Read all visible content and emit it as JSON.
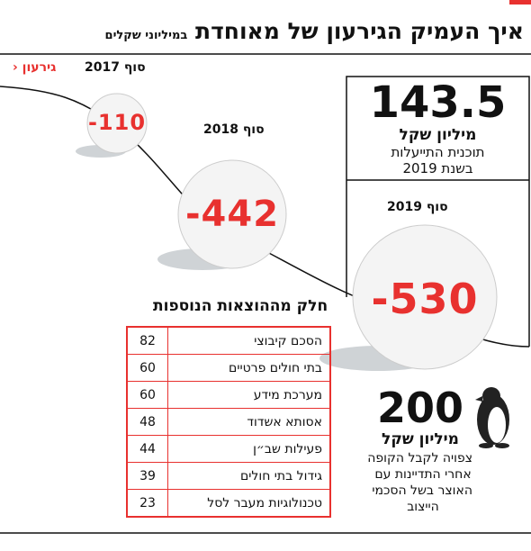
{
  "header": {
    "title": "איך העמיק הגירעון של מאוחדת",
    "subtitle": "במיליוני שקלים"
  },
  "legend": {
    "label": "גירעון"
  },
  "balls": [
    {
      "label": "סוף 2017",
      "value": -110
    },
    {
      "label": "סוף 2018",
      "value": -442
    },
    {
      "label": "סוף 2019",
      "value": -530
    }
  ],
  "plan": {
    "amount": 143.5,
    "unit": "מיליון שקל",
    "lines": [
      "תוכנית התייעלות",
      "בשנת 2019"
    ]
  },
  "table": {
    "title": "חלק מההוצאות הנוספות",
    "rows": [
      [
        "הסכם קיבוצי",
        82
      ],
      [
        "בתי חולים פרטיים",
        60
      ],
      [
        "מערכת מידע",
        60
      ],
      [
        "אסותא אשדוד",
        48
      ],
      [
        "פעילות שב״ן",
        44
      ],
      [
        "גידול בתי חולים",
        39
      ],
      [
        "טכנולוגיות מעבר לסל",
        23
      ]
    ]
  },
  "settlement": {
    "amount": 200,
    "unit": "מיליון שקל",
    "lines": [
      "צפויה לקבל הקופה",
      "אחרי התדיינות עם",
      "האוצר בשל הסכמי",
      "הייצוב"
    ]
  }
}
